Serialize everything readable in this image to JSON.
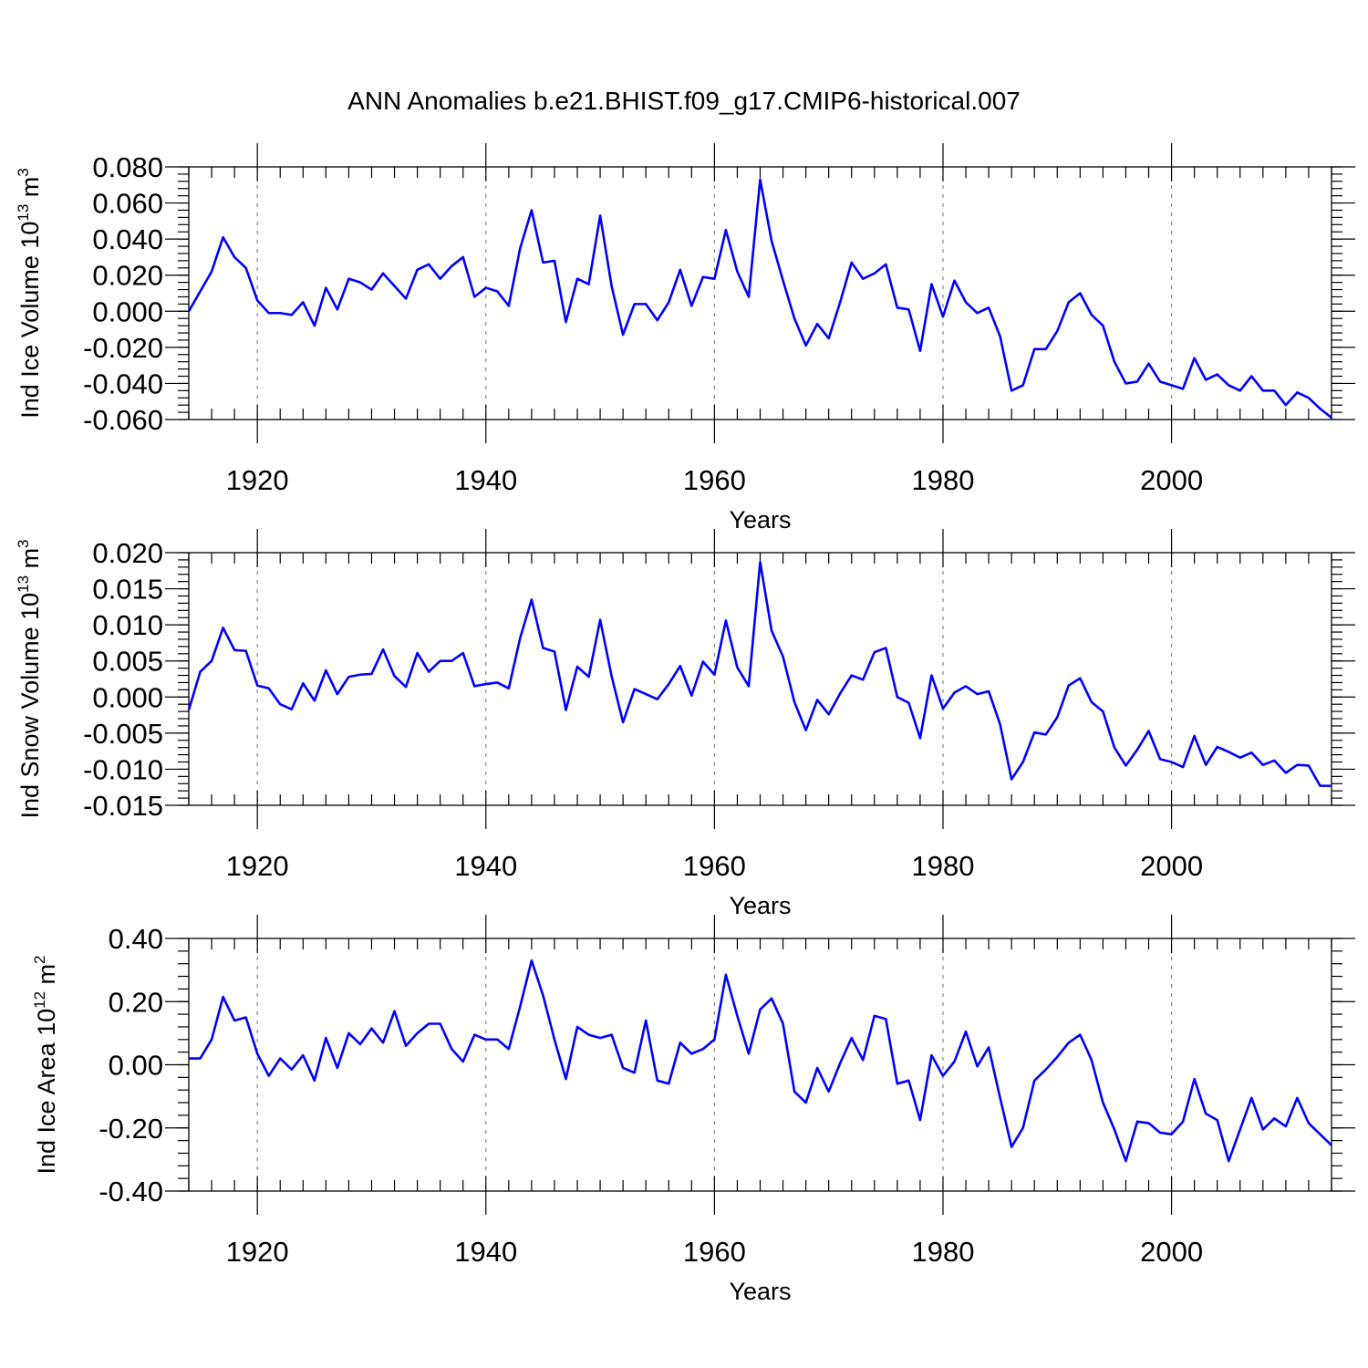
{
  "title": "ANN Anomalies b.e21.BHIST.f09_g17.CMIP6-historical.007",
  "colors": {
    "series": "#0000ff",
    "axes": "#000000",
    "grid": "#888888"
  },
  "chart_data": [
    {
      "type": "line",
      "ylabel": "Ind Ice Volume 10",
      "ylabel_exp": "13",
      "ylabel_unit": "m",
      "ylabel_unit_exp": "3",
      "xlabel": "Years",
      "xlim": [
        1914,
        2014
      ],
      "ylim": [
        -0.06,
        0.08
      ],
      "yticks": [
        -0.06,
        -0.04,
        -0.02,
        0.0,
        0.02,
        0.04,
        0.06,
        0.08
      ],
      "ytick_labels": [
        "-0.060",
        "-0.040",
        "-0.020",
        "0.000",
        "0.020",
        "0.040",
        "0.060",
        "0.080"
      ],
      "xticks": [
        1920,
        1940,
        1960,
        1980,
        2000
      ],
      "xtick_labels": [
        "1920",
        "1940",
        "1960",
        "1980",
        "2000"
      ],
      "grid": "vertical dashed at major x ticks",
      "x_start": 1914,
      "values": [
        0.0,
        0.011,
        0.022,
        0.041,
        0.03,
        0.024,
        0.006,
        -0.001,
        -0.001,
        -0.002,
        0.005,
        -0.008,
        0.013,
        0.001,
        0.018,
        0.016,
        0.012,
        0.021,
        0.014,
        0.007,
        0.023,
        0.026,
        0.018,
        0.025,
        0.03,
        0.008,
        0.013,
        0.011,
        0.003,
        0.035,
        0.056,
        0.027,
        0.028,
        -0.006,
        0.018,
        0.015,
        0.053,
        0.014,
        -0.013,
        0.004,
        0.004,
        -0.005,
        0.005,
        0.023,
        0.003,
        0.019,
        0.018,
        0.045,
        0.022,
        0.008,
        0.073,
        0.039,
        0.017,
        -0.004,
        -0.019,
        -0.007,
        -0.015,
        0.005,
        0.027,
        0.018,
        0.021,
        0.026,
        0.002,
        0.001,
        -0.022,
        0.015,
        -0.003,
        0.017,
        0.005,
        -0.001,
        0.002,
        -0.014,
        -0.044,
        -0.041,
        -0.021,
        -0.021,
        -0.011,
        0.005,
        0.01,
        -0.002,
        -0.008,
        -0.028,
        -0.04,
        -0.039,
        -0.029,
        -0.039,
        -0.041,
        -0.043,
        -0.026,
        -0.038,
        -0.035,
        -0.041,
        -0.044,
        -0.036,
        -0.044,
        -0.044,
        -0.052,
        -0.045,
        -0.048,
        -0.054,
        -0.059
      ]
    },
    {
      "type": "line",
      "ylabel": "Ind Snow Volume 10",
      "ylabel_exp": "13",
      "ylabel_unit": "m",
      "ylabel_unit_exp": "3",
      "xlabel": "Years",
      "xlim": [
        1914,
        2014
      ],
      "ylim": [
        -0.015,
        0.02
      ],
      "yticks": [
        -0.015,
        -0.01,
        -0.005,
        0.0,
        0.005,
        0.01,
        0.015,
        0.02
      ],
      "ytick_labels": [
        "-0.015",
        "-0.010",
        "-0.005",
        "0.000",
        "0.005",
        "0.010",
        "0.015",
        "0.020"
      ],
      "xticks": [
        1920,
        1940,
        1960,
        1980,
        2000
      ],
      "xtick_labels": [
        "1920",
        "1940",
        "1960",
        "1980",
        "2000"
      ],
      "grid": "vertical dashed at major x ticks",
      "x_start": 1914,
      "values": [
        -0.0018,
        0.0035,
        0.005,
        0.0096,
        0.0065,
        0.0064,
        0.0016,
        0.0012,
        -0.001,
        -0.0017,
        0.0019,
        -0.0005,
        0.0037,
        0.0004,
        0.0028,
        0.0031,
        0.0032,
        0.0066,
        0.0029,
        0.0014,
        0.0061,
        0.0035,
        0.005,
        0.005,
        0.0061,
        0.0015,
        0.0018,
        0.002,
        0.0012,
        0.0082,
        0.0135,
        0.0068,
        0.0063,
        -0.0018,
        0.0042,
        0.0028,
        0.0107,
        0.0029,
        -0.0035,
        0.0011,
        0.0004,
        -0.0003,
        0.0018,
        0.0043,
        0.0002,
        0.0049,
        0.0031,
        0.0106,
        0.0041,
        0.0015,
        0.0187,
        0.0092,
        0.0056,
        -0.0007,
        -0.0046,
        -0.0004,
        -0.0024,
        0.0005,
        0.003,
        0.0024,
        0.0062,
        0.0068,
        0.0,
        -0.0008,
        -0.0057,
        0.003,
        -0.0016,
        0.0006,
        0.0015,
        0.0004,
        0.0008,
        -0.0038,
        -0.0114,
        -0.009,
        -0.0049,
        -0.0052,
        -0.0028,
        0.0016,
        0.0026,
        -0.0007,
        -0.002,
        -0.007,
        -0.0095,
        -0.0073,
        -0.0047,
        -0.0086,
        -0.009,
        -0.0097,
        -0.0054,
        -0.0094,
        -0.0069,
        -0.0076,
        -0.0084,
        -0.0077,
        -0.0094,
        -0.0088,
        -0.0105,
        -0.0094,
        -0.0095,
        -0.0123,
        -0.0123
      ]
    },
    {
      "type": "line",
      "ylabel": "Ind Ice Area 10",
      "ylabel_exp": "12",
      "ylabel_unit": "m",
      "ylabel_unit_exp": "2",
      "xlabel": "Years",
      "xlim": [
        1914,
        2014
      ],
      "ylim": [
        -0.4,
        0.4
      ],
      "yticks": [
        -0.4,
        -0.2,
        0.0,
        0.2,
        0.4
      ],
      "ytick_labels": [
        "-0.40",
        "-0.20",
        "0.00",
        "0.20",
        "0.40"
      ],
      "xticks": [
        1920,
        1940,
        1960,
        1980,
        2000
      ],
      "xtick_labels": [
        "1920",
        "1940",
        "1960",
        "1980",
        "2000"
      ],
      "grid": "vertical dashed at major x ticks",
      "x_start": 1914,
      "values": [
        0.02,
        0.02,
        0.08,
        0.215,
        0.14,
        0.15,
        0.035,
        -0.035,
        0.02,
        -0.015,
        0.03,
        -0.05,
        0.085,
        -0.01,
        0.1,
        0.065,
        0.115,
        0.07,
        0.17,
        0.06,
        0.1,
        0.13,
        0.13,
        0.05,
        0.01,
        0.095,
        0.08,
        0.08,
        0.05,
        0.185,
        0.33,
        0.22,
        0.08,
        -0.045,
        0.12,
        0.095,
        0.085,
        0.095,
        -0.01,
        -0.025,
        0.14,
        -0.05,
        -0.06,
        0.07,
        0.035,
        0.05,
        0.08,
        0.285,
        0.155,
        0.035,
        0.175,
        0.21,
        0.13,
        -0.085,
        -0.12,
        -0.01,
        -0.085,
        0.005,
        0.085,
        0.015,
        0.155,
        0.145,
        -0.06,
        -0.05,
        -0.175,
        0.03,
        -0.035,
        0.01,
        0.105,
        -0.005,
        0.055,
        -0.105,
        -0.26,
        -0.2,
        -0.05,
        -0.015,
        0.025,
        0.07,
        0.095,
        0.015,
        -0.12,
        -0.205,
        -0.305,
        -0.18,
        -0.185,
        -0.215,
        -0.22,
        -0.18,
        -0.045,
        -0.155,
        -0.175,
        -0.305,
        -0.205,
        -0.105,
        -0.205,
        -0.17,
        -0.195,
        -0.105,
        -0.185,
        -0.22,
        -0.255
      ]
    }
  ]
}
